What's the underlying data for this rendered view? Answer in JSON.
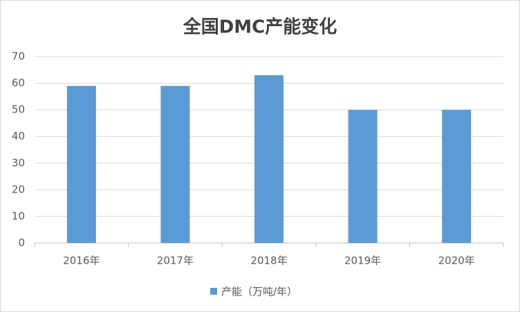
{
  "chart_data": {
    "type": "bar",
    "title": "全国DMC产能变化",
    "categories": [
      "2016年",
      "2017年",
      "2018年",
      "2019年",
      "2020年"
    ],
    "series": [
      {
        "name": "产能（万吨/年）",
        "color": "#5b9bd5",
        "values": [
          59,
          59,
          63,
          50,
          50
        ]
      }
    ],
    "ylim": [
      0,
      70
    ],
    "yticks": [
      0,
      10,
      20,
      30,
      40,
      50,
      60,
      70
    ],
    "grid": true,
    "legend": "bottom"
  }
}
